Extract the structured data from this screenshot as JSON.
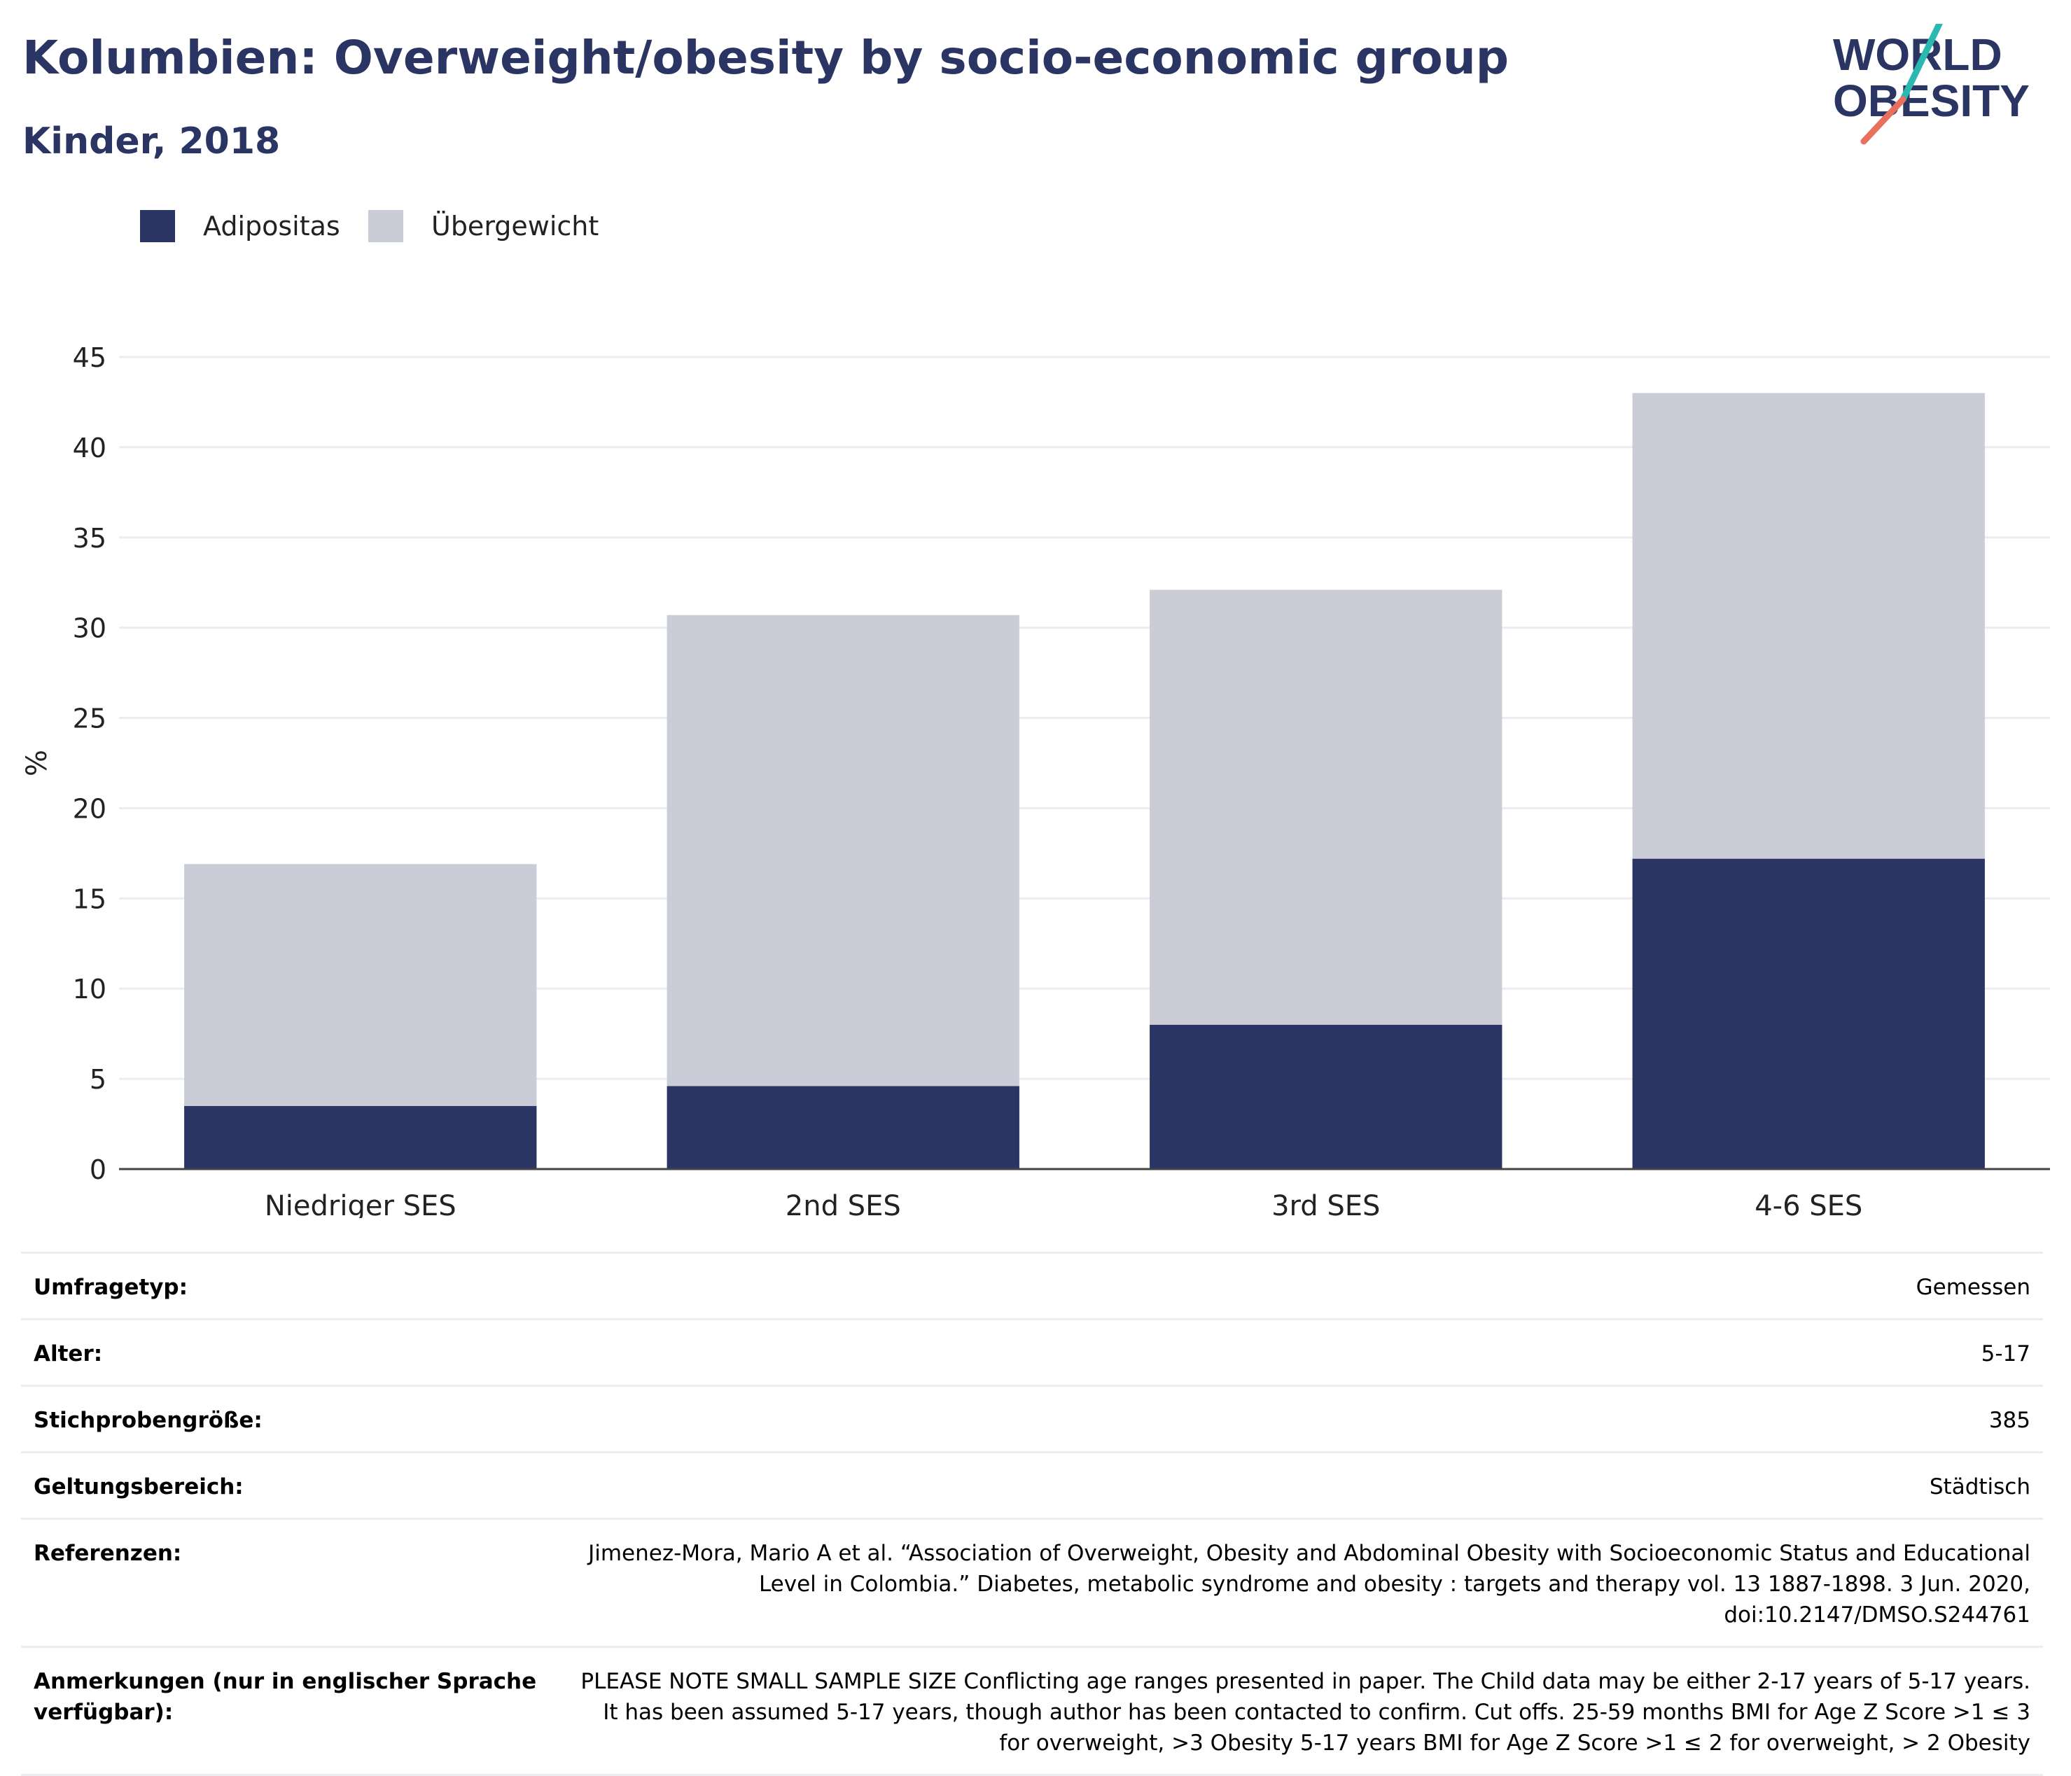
{
  "header": {
    "title": "Kolumbien: Overweight/obesity by socio-economic group",
    "subtitle": "Kinder, 2018"
  },
  "logo": {
    "line1": "WORLD",
    "line2": "OBESITY",
    "colors": {
      "text": "#2b3564",
      "slash_teal": "#2bb8b0",
      "slash_coral": "#e8705f"
    }
  },
  "colors": {
    "obesity": "#2b3564",
    "overweight": "#caccd8",
    "axis_text": "#222222",
    "grid": "#ececf2"
  },
  "chart_data": {
    "type": "bar",
    "stacked": true,
    "categories": [
      "Niedriger SES",
      "2nd SES",
      "3rd SES",
      "4-6 SES"
    ],
    "series": [
      {
        "name": "Adipositas",
        "color": "#2b3564",
        "values": [
          3.5,
          4.6,
          8.0,
          17.2
        ]
      },
      {
        "name": "Übergewicht",
        "color": "#caccd8",
        "values": [
          13.4,
          26.1,
          24.1,
          25.8
        ]
      }
    ],
    "ylabel": "%",
    "ylim": [
      0,
      45
    ],
    "yticks": [
      0,
      5,
      10,
      15,
      20,
      25,
      30,
      35,
      40,
      45
    ],
    "grid": true,
    "legend_position": "top-left"
  },
  "meta": {
    "rows": [
      {
        "key": "Umfragetyp:",
        "value": "Gemessen"
      },
      {
        "key": "Alter:",
        "value": "5-17"
      },
      {
        "key": "Stichprobengröße:",
        "value": "385"
      },
      {
        "key": "Geltungsbereich:",
        "value": "Städtisch"
      },
      {
        "key": "Referenzen:",
        "value": "Jimenez-Mora, Mario A et al. “Association of Overweight, Obesity and Abdominal Obesity with Socioeconomic Status and Educational Level in Colombia.” Diabetes, metabolic syndrome and obesity : targets and therapy vol. 13 1887-1898. 3 Jun. 2020, doi:10.2147/DMSO.S244761"
      },
      {
        "key": "Anmerkungen (nur in englischer Sprache verfügbar):",
        "value": "PLEASE NOTE SMALL SAMPLE SIZE Conflicting age ranges presented in paper. The Child data may be either 2-17 years of 5-17 years. It has been assumed 5-17 years, though author has been contacted to confirm. Cut offs. 25-59 months BMI for Age Z Score >1 ≤ 3 for overweight, >3 Obesity 5-17 years BMI for Age Z Score >1 ≤ 2 for overweight, > 2 Obesity"
      }
    ]
  }
}
